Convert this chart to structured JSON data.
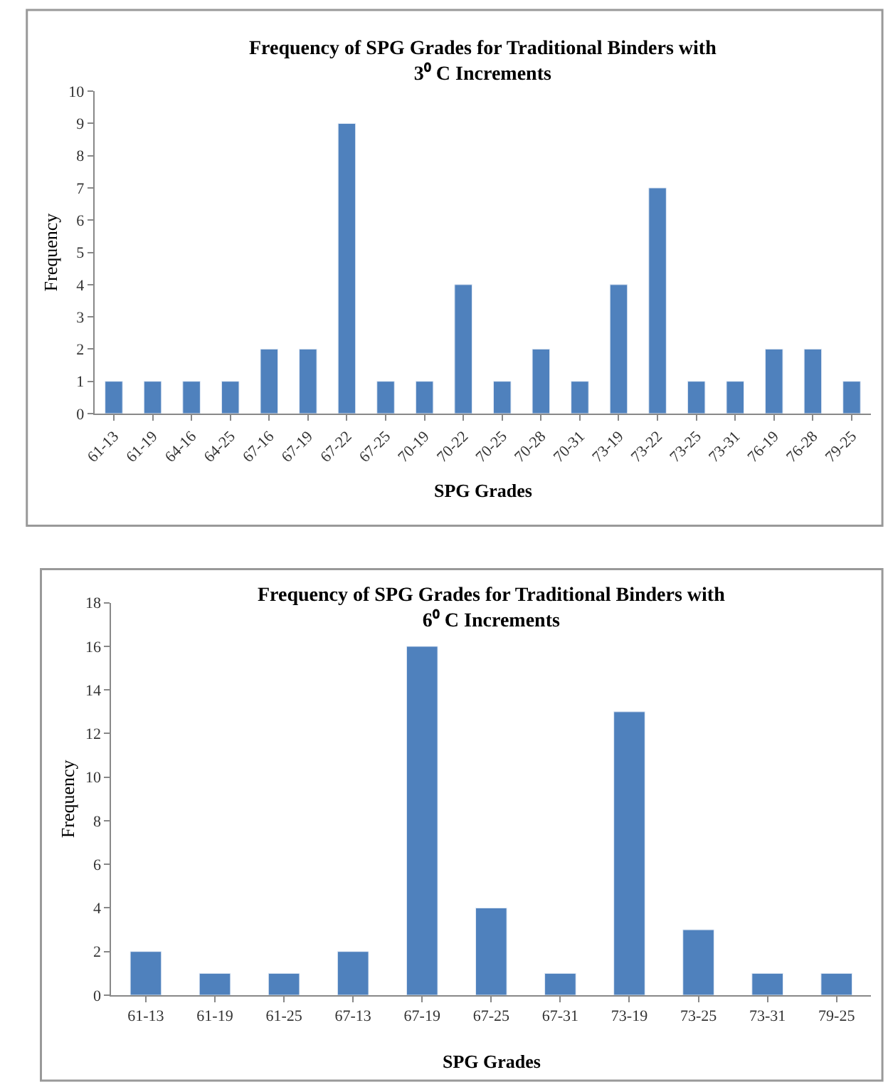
{
  "chart_data": [
    {
      "type": "bar",
      "title": "Frequency of SPG Grades for Traditional Binders with\n3⁰ C Increments",
      "xlabel": "SPG Grades",
      "ylabel": "Frequency",
      "categories": [
        "61-13",
        "61-19",
        "64-16",
        "64-25",
        "67-16",
        "67-19",
        "67-22",
        "67-25",
        "70-19",
        "70-22",
        "70-25",
        "70-28",
        "70-31",
        "73-19",
        "73-22",
        "73-25",
        "73-31",
        "76-19",
        "76-28",
        "79-25"
      ],
      "values": [
        1,
        1,
        1,
        1,
        2,
        2,
        9,
        1,
        1,
        4,
        1,
        2,
        1,
        4,
        7,
        1,
        1,
        2,
        2,
        1
      ],
      "color": "#4f81bd",
      "ylim": [
        0,
        10
      ],
      "yticks": [
        0,
        1,
        2,
        3,
        4,
        5,
        6,
        7,
        8,
        9,
        10
      ]
    },
    {
      "type": "bar",
      "title": "Frequency of SPG Grades for Traditional Binders with\n6⁰ C Increments",
      "xlabel": "SPG Grades",
      "ylabel": "Frequency",
      "categories": [
        "61-13",
        "61-19",
        "61-25",
        "67-13",
        "67-19",
        "67-25",
        "67-31",
        "73-19",
        "73-25",
        "73-31",
        "79-25"
      ],
      "values": [
        2,
        1,
        1,
        2,
        16,
        4,
        1,
        13,
        3,
        1,
        1
      ],
      "color": "#4f81bd",
      "ylim": [
        0,
        18
      ],
      "yticks": [
        0,
        2,
        4,
        6,
        8,
        10,
        12,
        14,
        16,
        18
      ]
    }
  ]
}
